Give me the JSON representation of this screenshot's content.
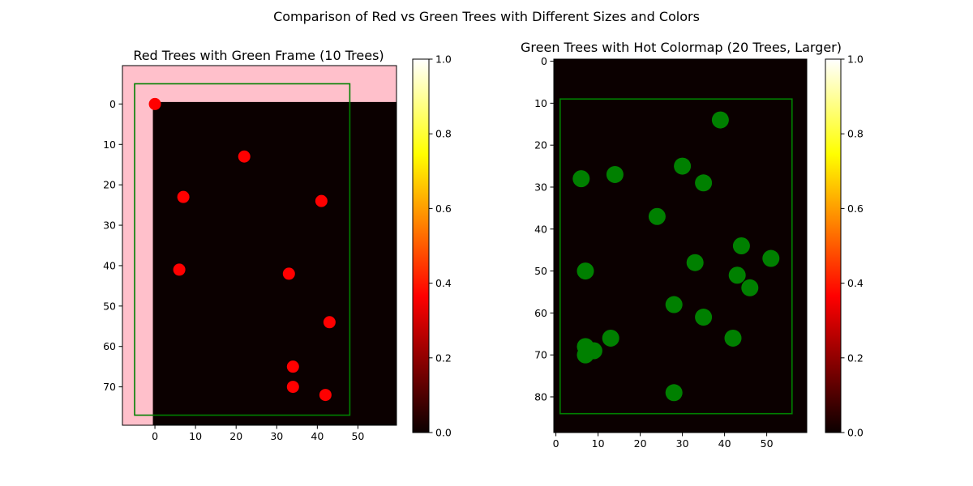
{
  "figure": {
    "suptitle": "Comparison of Red vs Green Trees with Different Sizes and Colors"
  },
  "colors": {
    "background_area": "#ffc0cb",
    "heat_zero": "#0b0000",
    "frame": "#008000",
    "red_tree": "#ff0000",
    "green_tree": "#008000"
  },
  "chart_data": [
    {
      "type": "scatter",
      "title": "Red Trees with Green Frame (10 Trees)",
      "xlabel": "",
      "ylabel": "",
      "xlim": [
        -8,
        59.5
      ],
      "ylim": [
        79.5,
        -9.5
      ],
      "y_inverted": true,
      "xticks": [
        0,
        10,
        20,
        30,
        40,
        50
      ],
      "yticks": [
        0,
        10,
        20,
        30,
        40,
        50,
        60,
        70
      ],
      "image_extent": {
        "x": [
          -0.5,
          59.5
        ],
        "y": [
          -0.5,
          79.5
        ]
      },
      "image_colormap": "hot",
      "image_values": "all 0",
      "frame_rect": {
        "x": [
          -5,
          48
        ],
        "y": [
          -5,
          77
        ]
      },
      "marker_color": "red",
      "points": [
        {
          "x": 0,
          "y": 0
        },
        {
          "x": 22,
          "y": 13
        },
        {
          "x": 7,
          "y": 23
        },
        {
          "x": 41,
          "y": 24
        },
        {
          "x": 6,
          "y": 41
        },
        {
          "x": 33,
          "y": 42
        },
        {
          "x": 43,
          "y": 54
        },
        {
          "x": 34,
          "y": 65
        },
        {
          "x": 34,
          "y": 70
        },
        {
          "x": 42,
          "y": 72
        }
      ],
      "colorbar": {
        "colormap": "hot",
        "range": [
          0,
          1
        ],
        "ticks": [
          "0.0",
          "0.2",
          "0.4",
          "0.6",
          "0.8",
          "1.0"
        ]
      }
    },
    {
      "type": "scatter",
      "title": "Green Trees with Hot Colormap (20 Trees, Larger)",
      "xlabel": "",
      "ylabel": "",
      "xlim": [
        -0.5,
        59.5
      ],
      "ylim": [
        88.5,
        -0.5
      ],
      "y_inverted": true,
      "xticks": [
        0,
        10,
        20,
        30,
        40,
        50
      ],
      "yticks": [
        0,
        10,
        20,
        30,
        40,
        50,
        60,
        70,
        80
      ],
      "image_extent": {
        "x": [
          -0.5,
          59.5
        ],
        "y": [
          -0.5,
          88.5
        ]
      },
      "image_colormap": "hot",
      "image_values": "all 0",
      "frame_rect": {
        "x": [
          1,
          56
        ],
        "y": [
          9,
          84
        ]
      },
      "marker_color": "green",
      "points": [
        {
          "x": 39,
          "y": 14
        },
        {
          "x": 30,
          "y": 25
        },
        {
          "x": 14,
          "y": 27
        },
        {
          "x": 6,
          "y": 28
        },
        {
          "x": 35,
          "y": 29
        },
        {
          "x": 24,
          "y": 37
        },
        {
          "x": 44,
          "y": 44
        },
        {
          "x": 51,
          "y": 47
        },
        {
          "x": 33,
          "y": 48
        },
        {
          "x": 7,
          "y": 50
        },
        {
          "x": 43,
          "y": 51
        },
        {
          "x": 46,
          "y": 54
        },
        {
          "x": 28,
          "y": 58
        },
        {
          "x": 35,
          "y": 61
        },
        {
          "x": 13,
          "y": 66
        },
        {
          "x": 42,
          "y": 66
        },
        {
          "x": 7,
          "y": 68
        },
        {
          "x": 9,
          "y": 69
        },
        {
          "x": 7,
          "y": 70
        },
        {
          "x": 28,
          "y": 79
        }
      ],
      "colorbar": {
        "colormap": "hot",
        "range": [
          0,
          1
        ],
        "ticks": [
          "0.0",
          "0.2",
          "0.4",
          "0.6",
          "0.8",
          "1.0"
        ]
      }
    }
  ]
}
